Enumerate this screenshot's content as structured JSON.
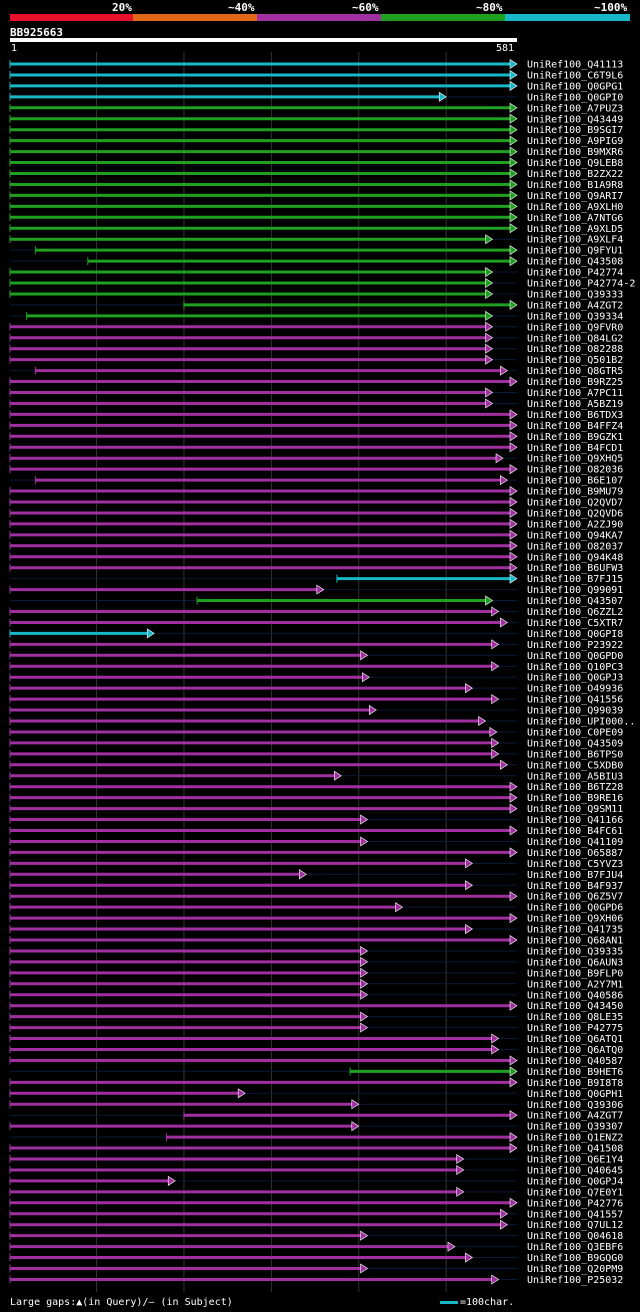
{
  "legend": {
    "labels": [
      "20%",
      "~40%",
      "~60%",
      "~80%",
      "~100%"
    ],
    "colors": [
      "#e8102a",
      "#e06818",
      "#a030a0",
      "#20a020",
      "#18b8c8"
    ]
  },
  "query": {
    "id": "BB925663",
    "start": "1",
    "end": "581",
    "length": 581
  },
  "footer": {
    "gaps": "Large gaps:▲(in Query)/— (in Subject)",
    "scale": "=100char."
  },
  "hits": [
    {
      "id": "UniRef100_Q41113",
      "s": 1,
      "e": 581,
      "c": "t"
    },
    {
      "id": "UniRef100_C6T9L6",
      "s": 1,
      "e": 581,
      "c": "t"
    },
    {
      "id": "UniRef100_Q0GPG1",
      "s": 1,
      "e": 581,
      "c": "t"
    },
    {
      "id": "UniRef100_Q0GPI0",
      "s": 1,
      "e": 500,
      "c": "t"
    },
    {
      "id": "UniRef100_A7PUZ3",
      "s": 1,
      "e": 581,
      "c": "g"
    },
    {
      "id": "UniRef100_Q43449",
      "s": 1,
      "e": 581,
      "c": "g"
    },
    {
      "id": "UniRef100_B9SGI7",
      "s": 1,
      "e": 581,
      "c": "g"
    },
    {
      "id": "UniRef100_A9PIG9",
      "s": 1,
      "e": 581,
      "c": "g"
    },
    {
      "id": "UniRef100_B9MXR6",
      "s": 1,
      "e": 581,
      "c": "g"
    },
    {
      "id": "UniRef100_Q9LEB8",
      "s": 1,
      "e": 581,
      "c": "g"
    },
    {
      "id": "UniRef100_B2ZX22",
      "s": 1,
      "e": 581,
      "c": "g"
    },
    {
      "id": "UniRef100_B1A9R8",
      "s": 1,
      "e": 581,
      "c": "g"
    },
    {
      "id": "UniRef100_Q9ARI7",
      "s": 1,
      "e": 581,
      "c": "g"
    },
    {
      "id": "UniRef100_A9XLH0",
      "s": 1,
      "e": 581,
      "c": "g"
    },
    {
      "id": "UniRef100_A7NTG6",
      "s": 1,
      "e": 581,
      "c": "g"
    },
    {
      "id": "UniRef100_A9XLD5",
      "s": 1,
      "e": 581,
      "c": "g"
    },
    {
      "id": "UniRef100_A9XLF4",
      "s": 1,
      "e": 553,
      "c": "g"
    },
    {
      "id": "UniRef100_Q9FYU1",
      "s": 30,
      "e": 581,
      "c": "g"
    },
    {
      "id": "UniRef100_Q43508",
      "s": 90,
      "e": 581,
      "c": "g"
    },
    {
      "id": "UniRef100_P42774",
      "s": 1,
      "e": 553,
      "c": "g"
    },
    {
      "id": "UniRef100_P42774-2",
      "s": 1,
      "e": 553,
      "c": "g"
    },
    {
      "id": "UniRef100_Q39333",
      "s": 1,
      "e": 553,
      "c": "g"
    },
    {
      "id": "UniRef100_A4ZGT2",
      "s": 200,
      "e": 581,
      "c": "g"
    },
    {
      "id": "UniRef100_Q39334",
      "s": 20,
      "e": 553,
      "c": "g"
    },
    {
      "id": "UniRef100_Q9FVR0",
      "s": 1,
      "e": 553,
      "c": "p"
    },
    {
      "id": "UniRef100_Q84LG2",
      "s": 1,
      "e": 553,
      "c": "p"
    },
    {
      "id": "UniRef100_O82288",
      "s": 1,
      "e": 553,
      "c": "p"
    },
    {
      "id": "UniRef100_Q501B2",
      "s": 1,
      "e": 553,
      "c": "p"
    },
    {
      "id": "UniRef100_Q8GTR5",
      "s": 30,
      "e": 570,
      "c": "p"
    },
    {
      "id": "UniRef100_B9RZ25",
      "s": 1,
      "e": 581,
      "c": "p"
    },
    {
      "id": "UniRef100_A7PC11",
      "s": 1,
      "e": 553,
      "c": "p"
    },
    {
      "id": "UniRef100_A5BZ19",
      "s": 1,
      "e": 553,
      "c": "p"
    },
    {
      "id": "UniRef100_B6TDX3",
      "s": 1,
      "e": 581,
      "c": "p"
    },
    {
      "id": "UniRef100_B4FFZ4",
      "s": 1,
      "e": 581,
      "c": "p"
    },
    {
      "id": "UniRef100_B9GZK1",
      "s": 1,
      "e": 581,
      "c": "p"
    },
    {
      "id": "UniRef100_B4FCD1",
      "s": 1,
      "e": 581,
      "c": "p"
    },
    {
      "id": "UniRef100_Q9XHQ5",
      "s": 1,
      "e": 565,
      "c": "p"
    },
    {
      "id": "UniRef100_O82036",
      "s": 1,
      "e": 581,
      "c": "p"
    },
    {
      "id": "UniRef100_B6E107",
      "s": 30,
      "e": 570,
      "c": "p"
    },
    {
      "id": "UniRef100_B9MU79",
      "s": 1,
      "e": 581,
      "c": "p"
    },
    {
      "id": "UniRef100_Q2QVD7",
      "s": 1,
      "e": 581,
      "c": "p"
    },
    {
      "id": "UniRef100_Q2QVD6",
      "s": 1,
      "e": 581,
      "c": "p"
    },
    {
      "id": "UniRef100_A2ZJ90",
      "s": 1,
      "e": 581,
      "c": "p"
    },
    {
      "id": "UniRef100_Q94KA7",
      "s": 1,
      "e": 581,
      "c": "p"
    },
    {
      "id": "UniRef100_O82037",
      "s": 1,
      "e": 581,
      "c": "p"
    },
    {
      "id": "UniRef100_Q94K48",
      "s": 1,
      "e": 581,
      "c": "p"
    },
    {
      "id": "UniRef100_B6UFW3",
      "s": 1,
      "e": 581,
      "c": "p"
    },
    {
      "id": "UniRef100_B7FJ15",
      "s": 375,
      "e": 581,
      "c": "t"
    },
    {
      "id": "UniRef100_Q99091",
      "s": 1,
      "e": 360,
      "c": "p"
    },
    {
      "id": "UniRef100_Q43507",
      "s": 215,
      "e": 553,
      "c": "g"
    },
    {
      "id": "UniRef100_Q6ZZL2",
      "s": 1,
      "e": 560,
      "c": "p"
    },
    {
      "id": "UniRef100_C5XTR7",
      "s": 1,
      "e": 570,
      "c": "p"
    },
    {
      "id": "UniRef100_Q0GPI8",
      "s": 1,
      "e": 166,
      "c": "t"
    },
    {
      "id": "UniRef100_P23922",
      "s": 1,
      "e": 560,
      "c": "p"
    },
    {
      "id": "UniRef100_Q0GPD0",
      "s": 1,
      "e": 410,
      "c": "p"
    },
    {
      "id": "UniRef100_Q10PC3",
      "s": 1,
      "e": 560,
      "c": "p"
    },
    {
      "id": "UniRef100_Q0GPJ3",
      "s": 1,
      "e": 412,
      "c": "p"
    },
    {
      "id": "UniRef100_O49936",
      "s": 1,
      "e": 530,
      "c": "p"
    },
    {
      "id": "UniRef100_Q41556",
      "s": 1,
      "e": 560,
      "c": "p"
    },
    {
      "id": "UniRef100_Q99039",
      "s": 1,
      "e": 420,
      "c": "p"
    },
    {
      "id": "UniRef100_UPI000..",
      "s": 1,
      "e": 545,
      "c": "p"
    },
    {
      "id": "UniRef100_C0PE09",
      "s": 1,
      "e": 558,
      "c": "p"
    },
    {
      "id": "UniRef100_Q43509",
      "s": 1,
      "e": 560,
      "c": "p"
    },
    {
      "id": "UniRef100_B6TPS0",
      "s": 1,
      "e": 560,
      "c": "p"
    },
    {
      "id": "UniRef100_C5XDB0",
      "s": 1,
      "e": 570,
      "c": "p"
    },
    {
      "id": "UniRef100_A5BIU3",
      "s": 1,
      "e": 380,
      "c": "p"
    },
    {
      "id": "UniRef100_B6TZ28",
      "s": 1,
      "e": 581,
      "c": "p"
    },
    {
      "id": "UniRef100_B9RE16",
      "s": 1,
      "e": 581,
      "c": "p"
    },
    {
      "id": "UniRef100_Q9SM11",
      "s": 1,
      "e": 581,
      "c": "p"
    },
    {
      "id": "UniRef100_Q41166",
      "s": 1,
      "e": 410,
      "c": "p"
    },
    {
      "id": "UniRef100_B4FC61",
      "s": 1,
      "e": 581,
      "c": "p"
    },
    {
      "id": "UniRef100_Q41109",
      "s": 1,
      "e": 410,
      "c": "p"
    },
    {
      "id": "UniRef100_O65887",
      "s": 1,
      "e": 581,
      "c": "p"
    },
    {
      "id": "UniRef100_C5YVZ3",
      "s": 1,
      "e": 530,
      "c": "p"
    },
    {
      "id": "UniRef100_B7FJU4",
      "s": 1,
      "e": 340,
      "c": "p"
    },
    {
      "id": "UniRef100_B4F937",
      "s": 1,
      "e": 530,
      "c": "p"
    },
    {
      "id": "UniRef100_Q6Z5V7",
      "s": 1,
      "e": 581,
      "c": "p"
    },
    {
      "id": "UniRef100_Q0GPD6",
      "s": 1,
      "e": 450,
      "c": "p"
    },
    {
      "id": "UniRef100_Q9XH06",
      "s": 1,
      "e": 581,
      "c": "p"
    },
    {
      "id": "UniRef100_Q41735",
      "s": 1,
      "e": 530,
      "c": "p"
    },
    {
      "id": "UniRef100_Q68AN1",
      "s": 1,
      "e": 581,
      "c": "p"
    },
    {
      "id": "UniRef100_Q39335",
      "s": 1,
      "e": 410,
      "c": "p"
    },
    {
      "id": "UniRef100_Q6AUN3",
      "s": 1,
      "e": 410,
      "c": "p"
    },
    {
      "id": "UniRef100_B9FLP0",
      "s": 1,
      "e": 410,
      "c": "p"
    },
    {
      "id": "UniRef100_A2Y7M1",
      "s": 1,
      "e": 410,
      "c": "p"
    },
    {
      "id": "UniRef100_Q40586",
      "s": 1,
      "e": 410,
      "c": "p"
    },
    {
      "id": "UniRef100_Q43450",
      "s": 1,
      "e": 581,
      "c": "p"
    },
    {
      "id": "UniRef100_Q8LE35",
      "s": 1,
      "e": 410,
      "c": "p"
    },
    {
      "id": "UniRef100_P42775",
      "s": 1,
      "e": 410,
      "c": "p"
    },
    {
      "id": "UniRef100_Q6ATQ1",
      "s": 1,
      "e": 560,
      "c": "p"
    },
    {
      "id": "UniRef100_Q6ATQ0",
      "s": 1,
      "e": 560,
      "c": "p"
    },
    {
      "id": "UniRef100_Q40587",
      "s": 1,
      "e": 581,
      "c": "p"
    },
    {
      "id": "UniRef100_B9HET6",
      "s": 390,
      "e": 581,
      "c": "g"
    },
    {
      "id": "UniRef100_B9I8T8",
      "s": 1,
      "e": 581,
      "c": "p"
    },
    {
      "id": "UniRef100_Q0GPH1",
      "s": 1,
      "e": 270,
      "c": "p"
    },
    {
      "id": "UniRef100_Q39306",
      "s": 1,
      "e": 400,
      "c": "p"
    },
    {
      "id": "UniRef100_A4ZGT7",
      "s": 200,
      "e": 581,
      "c": "p"
    },
    {
      "id": "UniRef100_Q39307",
      "s": 1,
      "e": 400,
      "c": "p"
    },
    {
      "id": "UniRef100_Q1ENZ2",
      "s": 180,
      "e": 581,
      "c": "p"
    },
    {
      "id": "UniRef100_Q41508",
      "s": 1,
      "e": 581,
      "c": "p"
    },
    {
      "id": "UniRef100_Q6E1Y4",
      "s": 1,
      "e": 520,
      "c": "p"
    },
    {
      "id": "UniRef100_Q40645",
      "s": 1,
      "e": 520,
      "c": "p"
    },
    {
      "id": "UniRef100_Q0GPJ4",
      "s": 1,
      "e": 190,
      "c": "p"
    },
    {
      "id": "UniRef100_Q7E0Y1",
      "s": 1,
      "e": 520,
      "c": "p"
    },
    {
      "id": "UniRef100_P42776",
      "s": 1,
      "e": 581,
      "c": "p"
    },
    {
      "id": "UniRef100_Q41557",
      "s": 1,
      "e": 570,
      "c": "p"
    },
    {
      "id": "UniRef100_Q7UL12",
      "s": 1,
      "e": 570,
      "c": "p"
    },
    {
      "id": "UniRef100_Q04618",
      "s": 1,
      "e": 410,
      "c": "p"
    },
    {
      "id": "UniRef100_Q3EBF6",
      "s": 1,
      "e": 510,
      "c": "p"
    },
    {
      "id": "UniRef100_B9GQG0",
      "s": 1,
      "e": 530,
      "c": "p"
    },
    {
      "id": "UniRef100_Q20PM9",
      "s": 1,
      "e": 410,
      "c": "p"
    },
    {
      "id": "UniRef100_P25032",
      "s": 1,
      "e": 560,
      "c": "p"
    }
  ]
}
